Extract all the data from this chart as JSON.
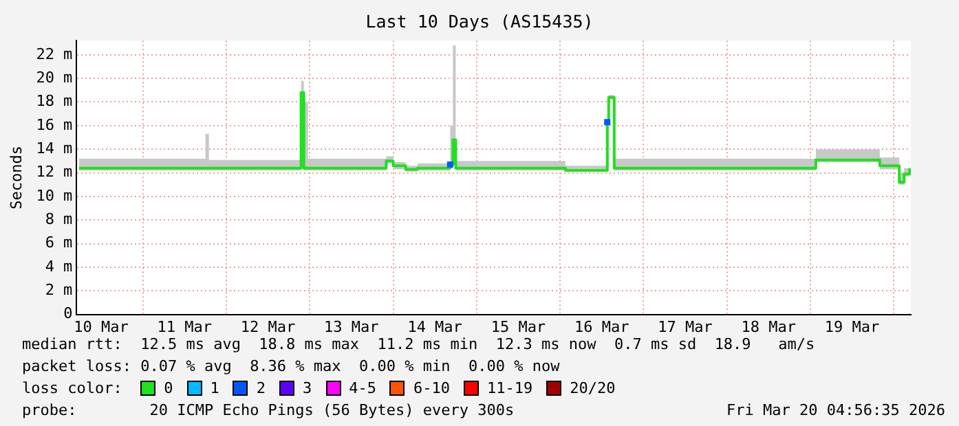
{
  "chart_data": {
    "type": "step",
    "title": "Last 10 Days (AS15435)",
    "ylabel": "Seconds",
    "xlim": [
      "2026-03-10T04:56",
      "2026-03-20T04:56"
    ],
    "xticks": [
      {
        "value": "2026-03-10T12:00",
        "label": "10 Mar"
      },
      {
        "value": "2026-03-11T00:00",
        "label": null
      },
      {
        "value": "2026-03-11T12:00",
        "label": "11 Mar"
      },
      {
        "value": "2026-03-12T00:00",
        "label": null
      },
      {
        "value": "2026-03-12T12:00",
        "label": "12 Mar"
      },
      {
        "value": "2026-03-13T00:00",
        "label": null
      },
      {
        "value": "2026-03-13T12:00",
        "label": "13 Mar"
      },
      {
        "value": "2026-03-14T00:00",
        "label": null
      },
      {
        "value": "2026-03-14T12:00",
        "label": "14 Mar"
      },
      {
        "value": "2026-03-15T00:00",
        "label": null
      },
      {
        "value": "2026-03-15T12:00",
        "label": "15 Mar"
      },
      {
        "value": "2026-03-16T00:00",
        "label": null
      },
      {
        "value": "2026-03-16T12:00",
        "label": "16 Mar"
      },
      {
        "value": "2026-03-17T00:00",
        "label": null
      },
      {
        "value": "2026-03-17T12:00",
        "label": "17 Mar"
      },
      {
        "value": "2026-03-18T00:00",
        "label": null
      },
      {
        "value": "2026-03-18T12:00",
        "label": "18 Mar"
      },
      {
        "value": "2026-03-19T00:00",
        "label": null
      },
      {
        "value": "2026-03-19T12:00",
        "label": "19 Mar"
      },
      {
        "value": "2026-03-20T00:00",
        "label": null
      }
    ],
    "ylim": [
      0,
      23.2
    ],
    "yticks": [
      0,
      {
        "value": 2,
        "label": "2 m"
      },
      {
        "value": 4,
        "label": "4 m"
      },
      {
        "value": 6,
        "label": "6 m"
      },
      {
        "value": 8,
        "label": "8 m"
      },
      {
        "value": 10,
        "label": "10 m"
      },
      {
        "value": 12,
        "label": "12 m"
      },
      {
        "value": 14,
        "label": "14 m"
      },
      {
        "value": 16,
        "label": "16 m"
      },
      {
        "value": 18,
        "label": "18 m"
      },
      {
        "value": 20,
        "label": "20 m"
      },
      {
        "value": 22,
        "label": "22 m"
      }
    ],
    "grid": true,
    "legend": "bottom",
    "legend_title": "loss color:",
    "series": [
      {
        "name": "0",
        "color": "#20e020",
        "x": [
          "2026-03-10T05:36",
          "2026-03-11T18:00",
          "2026-03-11T19:00",
          "2026-03-12T21:30",
          "2026-03-12T22:18",
          "2026-03-12T23:30",
          "2026-03-13T22:00",
          "2026-03-14T00:00",
          "2026-03-14T03:36",
          "2026-03-14T07:00",
          "2026-03-14T16:24",
          "2026-03-14T17:12",
          "2026-03-14T18:00",
          "2026-03-16T01:36",
          "2026-03-16T13:36",
          "2026-03-16T14:00",
          "2026-03-16T15:36",
          "2026-03-19T01:36",
          "2026-03-19T20:00",
          "2026-03-20T01:36",
          "2026-03-20T03:00",
          "2026-03-20T04:36"
        ],
        "values": [
          12.4,
          12.4,
          12.4,
          18.8,
          12.4,
          12.4,
          13.0,
          12.6,
          12.3,
          12.4,
          12.7,
          14.8,
          12.4,
          12.2,
          16.3,
          18.4,
          12.4,
          13.1,
          12.6,
          11.2,
          11.9,
          12.4
        ],
        "lower": [
          12.2,
          12.2,
          12.2,
          18.6,
          12.2,
          12.2,
          12.8,
          12.3,
          12.1,
          12.2,
          12.5,
          12.6,
          12.2,
          12.1,
          12.4,
          18.2,
          12.2,
          12.9,
          12.3,
          11.0,
          11.7,
          12.2
        ],
        "upper": [
          13.2,
          15.3,
          13.1,
          19.8,
          18.0,
          13.2,
          13.4,
          12.9,
          12.6,
          12.8,
          16.0,
          22.8,
          13.0,
          12.6,
          16.5,
          18.6,
          13.2,
          14.0,
          13.3,
          12.0,
          12.4,
          12.6
        ]
      },
      {
        "name": "1",
        "color": "#00bbff"
      },
      {
        "name": "2",
        "color": "#0059ff",
        "type": "scatter",
        "marker": "square",
        "x": [
          "2026-03-14T16:24",
          "2026-03-16T13:36"
        ],
        "values": [
          12.7,
          16.3
        ]
      },
      {
        "name": "3",
        "color": "#5e00ff"
      },
      {
        "name": "4-5",
        "color": "#ff00ff"
      },
      {
        "name": "6-10",
        "color": "#ff5500"
      },
      {
        "name": "11-19",
        "color": "#ff0000"
      },
      {
        "name": "20/20",
        "color": "#a10000"
      }
    ],
    "annotations": [
      "median rtt:  12.5 ms avg  18.8 ms max  11.2 ms min  12.3 ms now  0.7 ms sd  18.9   am/s",
      "packet loss: 0.07 % avg  8.36 % max  0.00 % min  0.00 % now",
      "probe:        20 ICMP Echo Pings (56 Bytes) every 300s",
      "Fri Mar 20 04:56:35 2026"
    ]
  }
}
